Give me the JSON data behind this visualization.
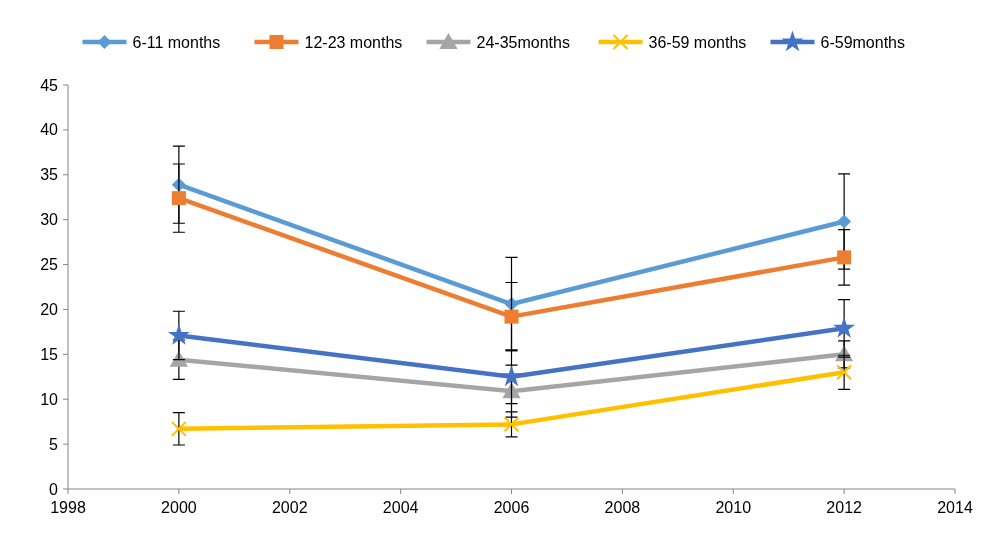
{
  "chart_data": {
    "type": "line",
    "x": [
      2000,
      2006,
      2012
    ],
    "xlim": [
      1998,
      2014
    ],
    "xticks": [
      1998,
      2000,
      2002,
      2004,
      2006,
      2008,
      2010,
      2012,
      2014
    ],
    "ylim": [
      0,
      45
    ],
    "yticks": [
      0,
      5,
      10,
      15,
      20,
      25,
      30,
      35,
      40,
      45
    ],
    "grid": false,
    "legend": "top",
    "line_style": "solid",
    "series": [
      {
        "name": "6-11 months",
        "color": "#5b9bd5",
        "marker": "diamond",
        "values": [
          33.9,
          20.6,
          29.8
        ],
        "errors": [
          4.3,
          5.2,
          5.3
        ]
      },
      {
        "name": "12-23 months",
        "color": "#ed7d31",
        "marker": "square",
        "values": [
          32.4,
          19.2,
          25.8
        ],
        "errors": [
          3.8,
          3.8,
          3.1
        ]
      },
      {
        "name": "24-35months",
        "color": "#a5a5a5",
        "marker": "triangle",
        "values": [
          14.4,
          10.9,
          15.0
        ],
        "errors": [
          2.2,
          2.9,
          1.5
        ]
      },
      {
        "name": "36-59 months",
        "color": "#ffc000",
        "marker": "cross",
        "values": [
          6.7,
          7.2,
          13.0
        ],
        "errors": [
          1.8,
          1.4,
          1.9
        ]
      },
      {
        "name": "6-59months",
        "color": "#4472c4",
        "marker": "star",
        "values": [
          17.1,
          12.5,
          17.9
        ],
        "errors": [
          2.7,
          3.0,
          3.2
        ]
      }
    ]
  }
}
